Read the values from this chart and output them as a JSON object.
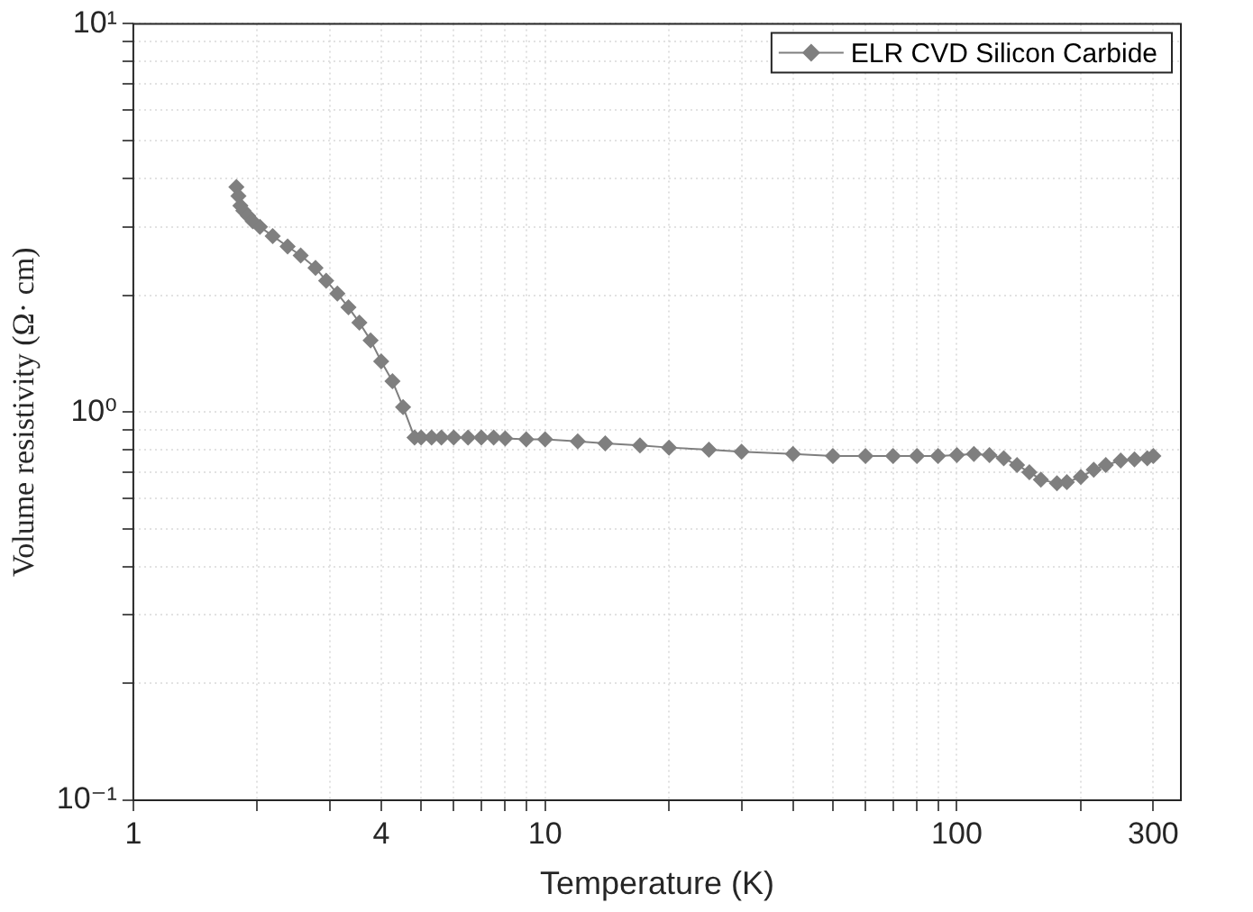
{
  "chart_data": {
    "type": "line",
    "xlabel": "Temperature (K)",
    "ylabel": "Volume resistivity (Ω· cm)",
    "log": "xy",
    "grid": true,
    "legend": "top right",
    "marker": "diamond",
    "line_style": "solid",
    "xlim": [
      1,
      350
    ],
    "ylim": [
      0.1,
      10
    ],
    "xticks": [
      1,
      {
        "value": 2,
        "label": null
      },
      {
        "value": 3,
        "label": null
      },
      4,
      {
        "value": 5,
        "label": null
      },
      {
        "value": 6,
        "label": null
      },
      {
        "value": 7,
        "label": null
      },
      {
        "value": 8,
        "label": null
      },
      {
        "value": 9,
        "label": null
      },
      10,
      {
        "value": 20,
        "label": null
      },
      {
        "value": 30,
        "label": null
      },
      {
        "value": 40,
        "label": null
      },
      {
        "value": 50,
        "label": null
      },
      {
        "value": 60,
        "label": null
      },
      {
        "value": 70,
        "label": null
      },
      {
        "value": 80,
        "label": null
      },
      {
        "value": 90,
        "label": null
      },
      100,
      {
        "value": 200,
        "label": null
      },
      300
    ],
    "yticks": [
      {
        "value": 0.1,
        "label": "10⁻¹"
      },
      {
        "value": 0.2,
        "label": null
      },
      {
        "value": 0.3,
        "label": null
      },
      {
        "value": 0.4,
        "label": null
      },
      {
        "value": 0.5,
        "label": null
      },
      {
        "value": 0.6,
        "label": null
      },
      {
        "value": 0.7,
        "label": null
      },
      {
        "value": 0.8,
        "label": null
      },
      {
        "value": 0.9,
        "label": null
      },
      {
        "value": 1,
        "label": "10⁰"
      },
      {
        "value": 2,
        "label": null
      },
      {
        "value": 3,
        "label": null
      },
      {
        "value": 4,
        "label": null
      },
      {
        "value": 5,
        "label": null
      },
      {
        "value": 6,
        "label": null
      },
      {
        "value": 7,
        "label": null
      },
      {
        "value": 8,
        "label": null
      },
      {
        "value": 9,
        "label": null
      },
      {
        "value": 10,
        "label": "10¹"
      }
    ],
    "x": [
      1.78,
      1.8,
      1.82,
      1.85,
      1.9,
      1.95,
      2.03,
      2.18,
      2.37,
      2.55,
      2.77,
      2.94,
      3.13,
      3.33,
      3.54,
      3.77,
      4.0,
      4.26,
      4.52,
      4.82,
      5,
      5.3,
      5.6,
      6,
      6.5,
      7,
      7.5,
      8,
      9,
      10,
      12,
      14,
      17,
      20,
      25,
      30,
      40,
      50,
      60,
      70,
      80,
      90,
      100,
      110,
      120,
      130,
      140,
      150,
      160,
      175,
      185,
      200,
      215,
      230,
      250,
      270,
      290,
      300
    ],
    "series": [
      {
        "name": "ELR CVD Silicon Carbide",
        "color": "#7f7f7f",
        "values": [
          3.8,
          3.6,
          3.4,
          3.3,
          3.2,
          3.1,
          3.0,
          2.84,
          2.67,
          2.53,
          2.35,
          2.18,
          2.02,
          1.86,
          1.7,
          1.53,
          1.35,
          1.2,
          1.03,
          0.86,
          0.86,
          0.86,
          0.86,
          0.86,
          0.86,
          0.86,
          0.86,
          0.855,
          0.85,
          0.85,
          0.84,
          0.83,
          0.82,
          0.81,
          0.8,
          0.79,
          0.78,
          0.77,
          0.77,
          0.77,
          0.77,
          0.77,
          0.775,
          0.78,
          0.775,
          0.76,
          0.73,
          0.7,
          0.67,
          0.655,
          0.66,
          0.68,
          0.71,
          0.73,
          0.75,
          0.755,
          0.76,
          0.77
        ]
      }
    ]
  }
}
